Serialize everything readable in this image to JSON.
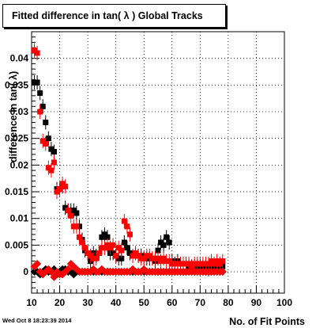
{
  "title": "Fitted difference in tan( λ )  Global Tracks",
  "timestamp": "Wed Oct  8 18:23:39 2014",
  "chart_data": {
    "type": "scatter",
    "title": "Fitted difference in tan( λ )  Global Tracks",
    "xlabel": "No. of Fit Points",
    "ylabel": "difference in tan( λ)",
    "xlim": [
      10,
      100
    ],
    "ylim": [
      -0.004,
      0.045
    ],
    "x_ticks": [
      "10",
      "20",
      "30",
      "40",
      "50",
      "60",
      "70",
      "80",
      "90",
      "100"
    ],
    "y_ticks": [
      "0",
      "0.005",
      "0.01",
      "0.015",
      "0.02",
      "0.025",
      "0.03",
      "0.035",
      "0.04"
    ],
    "grid": true,
    "series": [
      {
        "color": "#000000",
        "marker": "square",
        "points": [
          [
            11,
            0.0355
          ],
          [
            12,
            0.0355
          ],
          [
            13,
            0.0335
          ],
          [
            14,
            0.031
          ],
          [
            15,
            0.028
          ],
          [
            16,
            0.025
          ],
          [
            17,
            0.023
          ],
          [
            18,
            0.0225
          ],
          [
            19,
            0.0155
          ],
          [
            20,
            0.0155
          ],
          [
            21,
            0.016
          ],
          [
            22,
            0.012
          ],
          [
            23,
            0.0115
          ],
          [
            24,
            0.0115
          ],
          [
            25,
            0.0115
          ],
          [
            26,
            0.011
          ],
          [
            27,
            0.0085
          ],
          [
            28,
            0.006
          ],
          [
            29,
            0.004
          ],
          [
            30,
            0.0035
          ],
          [
            31,
            0.002
          ],
          [
            32,
            0.0035
          ],
          [
            33,
            0.003
          ],
          [
            34,
            0.0035
          ],
          [
            35,
            0.0065
          ],
          [
            36,
            0.007
          ],
          [
            37,
            0.0065
          ],
          [
            38,
            0.0035
          ],
          [
            39,
            0.0035
          ],
          [
            40,
            0.003
          ],
          [
            41,
            0.0025
          ],
          [
            42,
            0.0025
          ],
          [
            43,
            0.0055
          ],
          [
            44,
            0.0045
          ],
          [
            45,
            0.0035
          ],
          [
            46,
            0.003
          ],
          [
            47,
            0.0035
          ],
          [
            48,
            0.003
          ],
          [
            49,
            0.003
          ],
          [
            50,
            0.0025
          ],
          [
            51,
            0.0025
          ],
          [
            52,
            0.0025
          ],
          [
            53,
            0.0025
          ],
          [
            54,
            0.002
          ],
          [
            55,
            0.004
          ],
          [
            56,
            0.0055
          ],
          [
            57,
            0.005
          ],
          [
            58,
            0.0065
          ],
          [
            59,
            0.0055
          ],
          [
            60,
            0.002
          ],
          [
            61,
            0.0015
          ],
          [
            62,
            0.002
          ],
          [
            63,
            0.0015
          ],
          [
            64,
            0.0015
          ],
          [
            65,
            0.0015
          ],
          [
            66,
            0.001
          ],
          [
            67,
            0.001
          ],
          [
            68,
            0.001
          ],
          [
            69,
            0.001
          ],
          [
            70,
            0.001
          ],
          [
            71,
            0.001
          ],
          [
            72,
            0.001
          ],
          [
            73,
            0.0005
          ],
          [
            74,
            0.001
          ],
          [
            75,
            0.001
          ],
          [
            76,
            0.001
          ],
          [
            77,
            0.001
          ],
          [
            78,
            0.001
          ]
        ]
      },
      {
        "color": "#ff0000",
        "marker": "square",
        "points": [
          [
            11,
            0.0415
          ],
          [
            12,
            0.041
          ],
          [
            13,
            0.03
          ],
          [
            14,
            0.0245
          ],
          [
            15,
            0.024
          ],
          [
            16,
            0.0195
          ],
          [
            17,
            0.019
          ],
          [
            18,
            0.0205
          ],
          [
            19,
            0.015
          ],
          [
            20,
            0.0155
          ],
          [
            21,
            0.0165
          ],
          [
            22,
            0.016
          ],
          [
            23,
            0.0115
          ],
          [
            24,
            0.0105
          ],
          [
            25,
            0.0085
          ],
          [
            26,
            0.0085
          ],
          [
            27,
            0.0065
          ],
          [
            28,
            0.0055
          ],
          [
            29,
            0.0045
          ],
          [
            30,
            0.0035
          ],
          [
            31,
            0.003
          ],
          [
            32,
            0.0025
          ],
          [
            33,
            0.0025
          ],
          [
            34,
            0.0035
          ],
          [
            35,
            0.0045
          ],
          [
            36,
            0.0045
          ],
          [
            37,
            0.005
          ],
          [
            38,
            0.0045
          ],
          [
            39,
            0.005
          ],
          [
            40,
            0.003
          ],
          [
            41,
            0.0045
          ],
          [
            42,
            0.004
          ],
          [
            43,
            0.0095
          ],
          [
            44,
            0.0085
          ],
          [
            45,
            0.007
          ],
          [
            46,
            0.003
          ],
          [
            47,
            0.0035
          ],
          [
            48,
            0.003
          ],
          [
            49,
            0.0025
          ],
          [
            50,
            0.0025
          ],
          [
            51,
            0.003
          ],
          [
            52,
            0.003
          ],
          [
            53,
            0.0025
          ],
          [
            54,
            0.0025
          ],
          [
            55,
            0.0025
          ],
          [
            56,
            0.002
          ],
          [
            57,
            0.0025
          ],
          [
            58,
            0.002
          ],
          [
            59,
            0.002
          ],
          [
            60,
            0.0015
          ],
          [
            61,
            0.0015
          ],
          [
            62,
            0.0015
          ],
          [
            63,
            0.0015
          ],
          [
            64,
            0.0015
          ],
          [
            65,
            0.0015
          ],
          [
            66,
            0.0015
          ],
          [
            67,
            0.001
          ],
          [
            68,
            0.0015
          ],
          [
            69,
            0.0015
          ],
          [
            70,
            0.0015
          ],
          [
            71,
            0.0015
          ],
          [
            72,
            0.0015
          ],
          [
            73,
            0.0015
          ],
          [
            74,
            0.002
          ],
          [
            75,
            0.0015
          ],
          [
            76,
            0.002
          ],
          [
            77,
            0.0015
          ],
          [
            78,
            0.002
          ]
        ]
      },
      {
        "color": "#000000",
        "marker": "diamond",
        "points": [
          [
            11,
            0.0
          ],
          [
            12,
            0.0
          ],
          [
            13,
            -0.0005
          ],
          [
            14,
            0.0
          ],
          [
            15,
            0.0005
          ],
          [
            16,
            0.0
          ],
          [
            17,
            0.0
          ],
          [
            18,
            0.0005
          ],
          [
            19,
            -0.0005
          ],
          [
            20,
            0.0
          ],
          [
            21,
            0.0005
          ],
          [
            22,
            0.0005
          ],
          [
            23,
            0.0
          ],
          [
            24,
            0.0
          ],
          [
            25,
            -0.0005
          ],
          [
            26,
            0.0
          ],
          [
            27,
            0.0
          ],
          [
            28,
            0.0
          ],
          [
            29,
            0.0
          ],
          [
            30,
            0.0
          ],
          [
            31,
            0.0
          ],
          [
            32,
            0.0
          ],
          [
            33,
            0.0
          ],
          [
            34,
            0.0
          ],
          [
            35,
            0.0
          ],
          [
            36,
            0.0
          ],
          [
            37,
            0.0
          ],
          [
            38,
            0.0
          ],
          [
            39,
            0.0
          ],
          [
            40,
            0.0
          ],
          [
            41,
            0.0
          ],
          [
            42,
            0.0
          ],
          [
            43,
            0.0
          ],
          [
            44,
            0.0
          ],
          [
            45,
            0.0
          ],
          [
            46,
            0.0
          ],
          [
            47,
            0.0
          ],
          [
            48,
            0.0
          ],
          [
            49,
            0.0
          ],
          [
            50,
            0.0
          ],
          [
            51,
            0.0
          ],
          [
            52,
            0.0
          ],
          [
            53,
            0.0
          ],
          [
            54,
            0.0
          ],
          [
            55,
            0.0
          ],
          [
            56,
            0.0
          ],
          [
            57,
            0.0
          ],
          [
            58,
            0.0
          ],
          [
            59,
            0.0
          ],
          [
            60,
            0.0
          ],
          [
            61,
            0.0
          ],
          [
            62,
            0.0
          ],
          [
            63,
            0.0
          ],
          [
            64,
            0.0
          ],
          [
            65,
            0.0
          ],
          [
            66,
            0.0
          ],
          [
            67,
            0.0
          ],
          [
            68,
            0.0
          ],
          [
            69,
            0.0
          ],
          [
            70,
            0.0
          ],
          [
            71,
            0.0
          ],
          [
            72,
            0.0
          ],
          [
            73,
            0.0
          ],
          [
            74,
            0.0
          ],
          [
            75,
            0.0
          ],
          [
            76,
            0.0
          ],
          [
            77,
            0.0
          ],
          [
            78,
            0.0
          ]
        ]
      },
      {
        "color": "#ff0000",
        "marker": "diamond",
        "points": [
          [
            11,
            0.001
          ],
          [
            12,
            0.0015
          ],
          [
            13,
            0.0
          ],
          [
            14,
            -0.0005
          ],
          [
            15,
            0.0
          ],
          [
            16,
            0.0005
          ],
          [
            17,
            0.0
          ],
          [
            18,
            -0.001
          ],
          [
            19,
            0.0
          ],
          [
            20,
            -0.0005
          ],
          [
            21,
            -0.0005
          ],
          [
            22,
            0.0
          ],
          [
            23,
            0.0005
          ],
          [
            24,
            0.0015
          ],
          [
            25,
            0.001
          ],
          [
            26,
            0.0005
          ],
          [
            27,
            0.0
          ],
          [
            28,
            0.0
          ],
          [
            29,
            0.0
          ],
          [
            30,
            0.0
          ],
          [
            31,
            0.0
          ],
          [
            32,
            0.0005
          ],
          [
            33,
            0.0
          ],
          [
            34,
            0.0
          ],
          [
            35,
            0.0005
          ],
          [
            36,
            0.0
          ],
          [
            37,
            0.0
          ],
          [
            38,
            0.0
          ],
          [
            39,
            0.0
          ],
          [
            40,
            0.0
          ],
          [
            41,
            0.0
          ],
          [
            42,
            0.0
          ],
          [
            43,
            0.0
          ],
          [
            44,
            0.0
          ],
          [
            45,
            0.0
          ],
          [
            46,
            0.0005
          ],
          [
            47,
            0.0
          ],
          [
            48,
            0.0
          ],
          [
            49,
            0.0
          ],
          [
            50,
            0.0005
          ],
          [
            51,
            0.0
          ],
          [
            52,
            0.0
          ],
          [
            53,
            0.0
          ],
          [
            54,
            0.0
          ],
          [
            55,
            0.0
          ],
          [
            56,
            0.0
          ],
          [
            57,
            0.0
          ],
          [
            58,
            0.0
          ],
          [
            59,
            0.0
          ],
          [
            60,
            0.0
          ],
          [
            61,
            0.0
          ],
          [
            62,
            0.0
          ],
          [
            63,
            0.0
          ],
          [
            64,
            0.0
          ],
          [
            65,
            0.0
          ],
          [
            66,
            0.0
          ],
          [
            67,
            0.0
          ],
          [
            68,
            0.0
          ],
          [
            69,
            0.0
          ],
          [
            70,
            0.0
          ],
          [
            71,
            0.0
          ],
          [
            72,
            0.0
          ],
          [
            73,
            0.0
          ],
          [
            74,
            0.0
          ],
          [
            75,
            0.0
          ],
          [
            76,
            0.0
          ],
          [
            77,
            0.0
          ],
          [
            78,
            0.0
          ]
        ]
      }
    ]
  }
}
